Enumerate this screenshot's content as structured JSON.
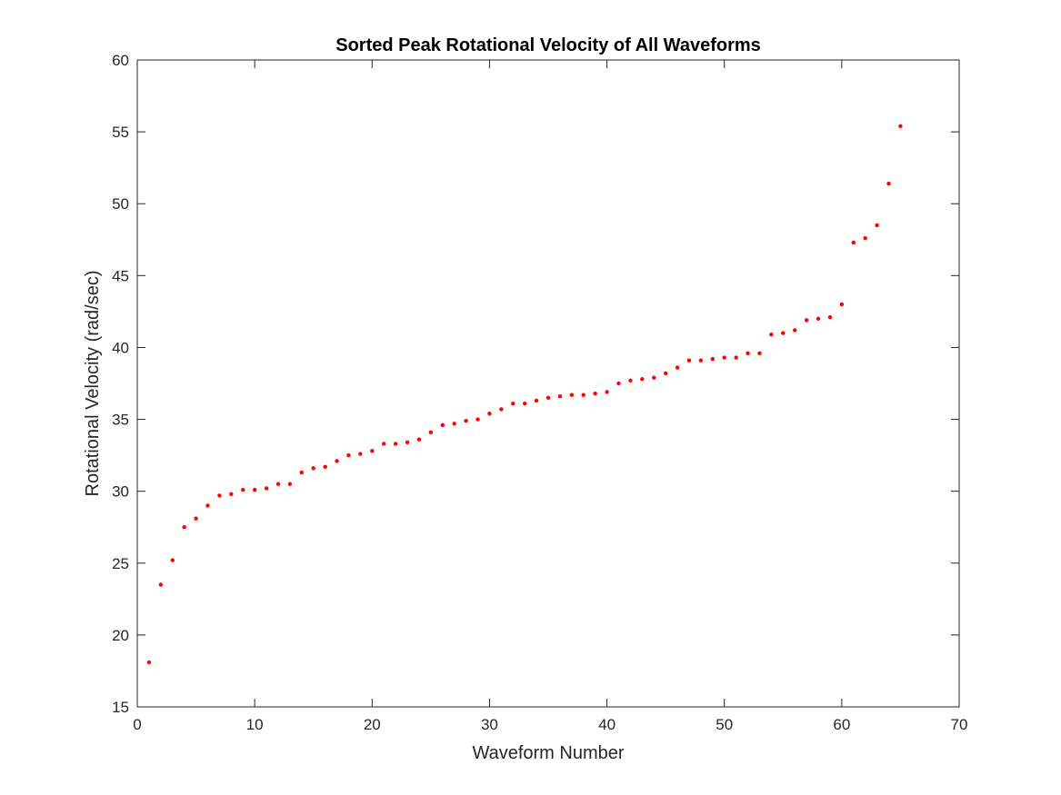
{
  "chart_data": {
    "type": "scatter",
    "title": "Sorted Peak Rotational Velocity of All Waveforms",
    "xlabel": "Waveform Number",
    "ylabel": "Rotational Velocity (rad/sec)",
    "xlim": [
      0,
      70
    ],
    "ylim": [
      15,
      60
    ],
    "xticks": [
      0,
      10,
      20,
      30,
      40,
      50,
      60,
      70
    ],
    "yticks": [
      15,
      20,
      25,
      30,
      35,
      40,
      45,
      50,
      55,
      60
    ],
    "grid": false,
    "marker_color": "#ff0000",
    "axis_color": "#262626",
    "x": [
      1,
      2,
      3,
      4,
      5,
      6,
      7,
      8,
      9,
      10,
      11,
      12,
      13,
      14,
      15,
      16,
      17,
      18,
      19,
      20,
      21,
      22,
      23,
      24,
      25,
      26,
      27,
      28,
      29,
      30,
      31,
      32,
      33,
      34,
      35,
      36,
      37,
      38,
      39,
      40,
      41,
      42,
      43,
      44,
      45,
      46,
      47,
      48,
      49,
      50,
      51,
      52,
      53,
      54,
      55,
      56,
      57,
      58,
      59,
      60,
      61,
      62,
      63,
      64,
      65
    ],
    "y": [
      18.1,
      23.5,
      25.2,
      27.5,
      28.1,
      29.0,
      29.7,
      29.8,
      30.1,
      30.1,
      30.2,
      30.5,
      30.5,
      31.3,
      31.6,
      31.7,
      32.1,
      32.5,
      32.6,
      32.8,
      33.3,
      33.3,
      33.4,
      33.6,
      34.1,
      34.6,
      34.7,
      34.9,
      35.0,
      35.4,
      35.7,
      36.1,
      36.1,
      36.3,
      36.5,
      36.6,
      36.7,
      36.7,
      36.8,
      36.9,
      37.5,
      37.7,
      37.8,
      37.9,
      38.2,
      38.6,
      39.1,
      39.1,
      39.2,
      39.3,
      39.3,
      39.6,
      39.6,
      40.9,
      41.0,
      41.2,
      41.9,
      42.0,
      42.1,
      43.0,
      47.3,
      47.6,
      48.5,
      51.4,
      55.4
    ]
  }
}
